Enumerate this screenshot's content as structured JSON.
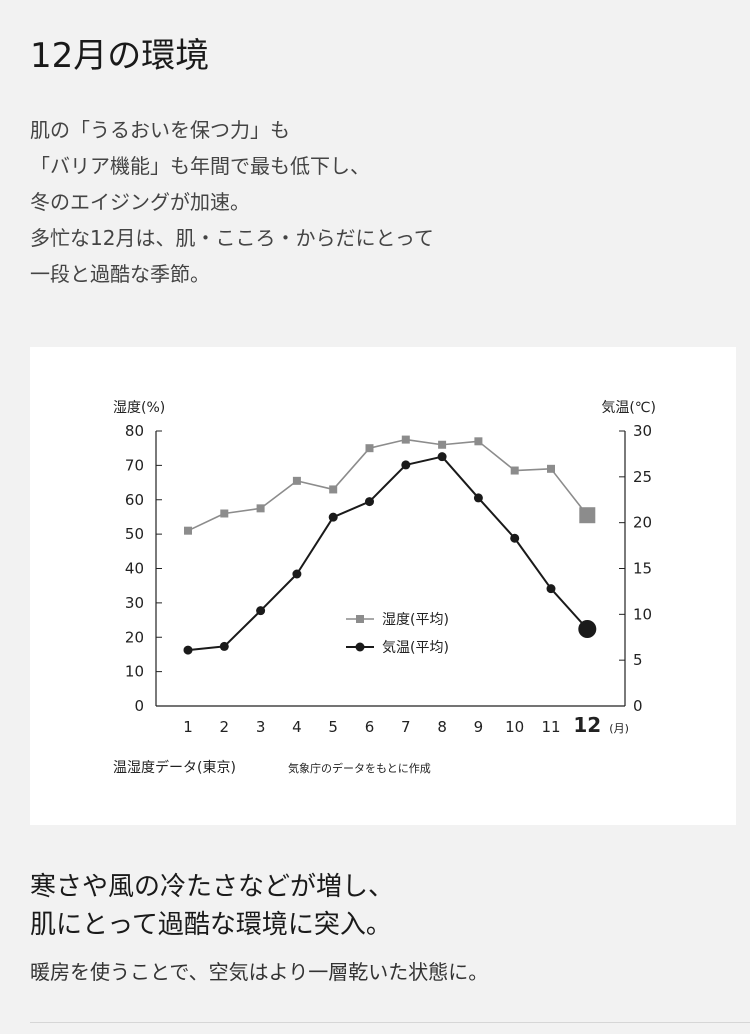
{
  "section": {
    "title": "12月の環境"
  },
  "intro": {
    "lines": [
      "肌の「うるおいを保つ力」も",
      "「バリア機能」も年間で最も低下し、",
      "冬のエイジングが加速。",
      "多忙な12月は、肌・こころ・からだにとって",
      "一段と過酷な季節。"
    ]
  },
  "chart_data": {
    "type": "line",
    "left_axis_label": "湿度(%)",
    "right_axis_label": "気温(℃)",
    "x_unit_label": "(月)",
    "categories": [
      "1",
      "2",
      "3",
      "4",
      "5",
      "6",
      "7",
      "8",
      "9",
      "10",
      "11",
      "12"
    ],
    "highlight_category": "12",
    "left_ylim": [
      0,
      80
    ],
    "left_ticks": [
      0,
      10,
      20,
      30,
      40,
      50,
      60,
      70,
      80
    ],
    "right_ylim": [
      0,
      30
    ],
    "right_ticks": [
      0,
      5,
      10,
      15,
      20,
      25,
      30
    ],
    "series": [
      {
        "name": "湿度(平均)",
        "axis": "left",
        "marker": "square",
        "color": "#8c8c8c",
        "values": [
          51,
          56,
          57.5,
          65.5,
          63,
          75,
          77.5,
          76,
          77,
          68.5,
          69,
          55.5
        ]
      },
      {
        "name": "気温(平均)",
        "axis": "right",
        "marker": "circle",
        "color": "#1a1a1a",
        "values": [
          6.1,
          6.5,
          10.4,
          14.4,
          20.6,
          22.3,
          26.3,
          27.2,
          22.7,
          18.3,
          12.8,
          8.4
        ]
      }
    ],
    "legend_position": "center",
    "footnote_main": "温湿度データ(東京)",
    "footnote_sub": "気象庁のデータをもとに作成",
    "grid": false
  },
  "closing": {
    "heading_lines": [
      "寒さや風の冷たさなどが増し、",
      "肌にとって過酷な環境に突入。"
    ],
    "subtext": "暖房を使うことで、空気はより一層乾いた状態に。"
  }
}
